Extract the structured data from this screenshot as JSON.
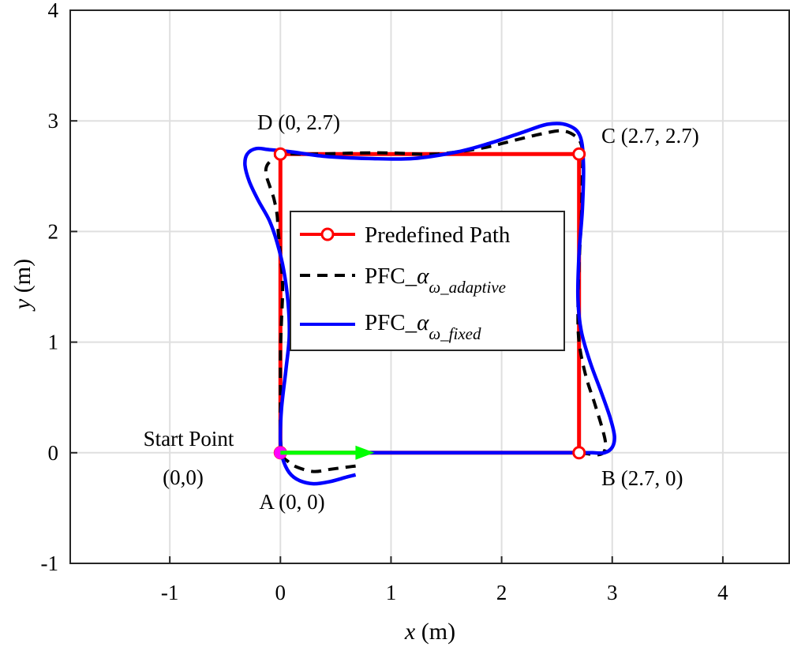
{
  "chart_data": {
    "type": "line",
    "xlabel_var": "x",
    "xlabel_unit": " (m)",
    "ylabel_var": "y",
    "ylabel_unit": " (m)",
    "xlim": [
      -1.9,
      4.6
    ],
    "ylim": [
      -1,
      4
    ],
    "xticks": [
      -1,
      0,
      1,
      2,
      3,
      4
    ],
    "yticks": [
      -1,
      0,
      1,
      2,
      3,
      4
    ],
    "grid": true,
    "legend_position": "center",
    "colors": {
      "predefined": "#ff0000",
      "adaptive": "#000000",
      "fixed": "#0000ff",
      "start_marker": "#ff00ff",
      "heading_arrow": "#00ff00"
    },
    "legend": [
      {
        "main": "Predefined Path",
        "sub": ""
      },
      {
        "main": "PFC_",
        "greek": "α",
        "sub": "ω_adaptive"
      },
      {
        "main": "PFC_",
        "greek": "α",
        "sub": "ω_fixed"
      }
    ],
    "series": [
      {
        "id": "predefined",
        "x": [
          0,
          2.7,
          2.7,
          0,
          0
        ],
        "y": [
          0,
          0,
          2.7,
          2.7,
          0
        ]
      },
      {
        "id": "adaptive",
        "x": [
          0.68,
          0.6,
          0.45,
          0.3,
          0.15,
          0.07,
          0.02,
          0.0,
          0.0,
          0.0,
          0.01,
          0.02,
          0.0,
          -0.02,
          -0.03,
          -0.06,
          -0.1,
          -0.13,
          -0.12,
          -0.05,
          0.0,
          0.3,
          0.7,
          1.0,
          1.4,
          1.8,
          2.1,
          2.35,
          2.55,
          2.68,
          2.73,
          2.73,
          2.72,
          2.7,
          2.69,
          2.7,
          2.76,
          2.84,
          2.91,
          2.94,
          2.92,
          2.86,
          2.78,
          2.7,
          2.5,
          2.1,
          1.6,
          1.1,
          0.7
        ],
        "y": [
          -0.12,
          -0.13,
          -0.15,
          -0.17,
          -0.13,
          -0.08,
          -0.02,
          0.15,
          0.5,
          0.9,
          1.2,
          1.5,
          1.8,
          2.0,
          2.15,
          2.3,
          2.42,
          2.52,
          2.6,
          2.67,
          2.7,
          2.7,
          2.71,
          2.71,
          2.7,
          2.75,
          2.82,
          2.88,
          2.91,
          2.85,
          2.74,
          2.5,
          2.1,
          1.7,
          1.3,
          1.0,
          0.7,
          0.45,
          0.22,
          0.08,
          0.0,
          -0.02,
          -0.01,
          0.0,
          0.0,
          0.0,
          0.0,
          0.0,
          0.0
        ]
      },
      {
        "id": "fixed",
        "x": [
          0.68,
          0.6,
          0.45,
          0.3,
          0.17,
          0.08,
          0.02,
          0.0,
          0.01,
          0.05,
          0.08,
          0.07,
          0.03,
          -0.03,
          -0.1,
          -0.2,
          -0.28,
          -0.32,
          -0.3,
          -0.22,
          -0.1,
          0.1,
          0.4,
          0.8,
          1.2,
          1.6,
          1.9,
          2.2,
          2.42,
          2.6,
          2.71,
          2.74,
          2.73,
          2.7,
          2.69,
          2.72,
          2.8,
          2.9,
          2.98,
          3.02,
          3.0,
          2.93,
          2.82,
          2.7,
          2.4,
          2.0,
          1.5,
          1.0,
          0.6
        ],
        "y": [
          -0.2,
          -0.22,
          -0.26,
          -0.28,
          -0.25,
          -0.18,
          -0.05,
          0.1,
          0.4,
          0.75,
          1.05,
          1.35,
          1.65,
          1.9,
          2.1,
          2.28,
          2.45,
          2.6,
          2.7,
          2.75,
          2.74,
          2.72,
          2.68,
          2.66,
          2.66,
          2.72,
          2.8,
          2.9,
          2.97,
          2.96,
          2.86,
          2.6,
          2.2,
          1.8,
          1.4,
          1.1,
          0.82,
          0.55,
          0.32,
          0.15,
          0.05,
          0.0,
          0.0,
          0.0,
          0.0,
          0.0,
          0.0,
          0.0,
          0.0
        ]
      }
    ],
    "corners": [
      {
        "id": "A",
        "label": "A (0, 0)",
        "x": 0,
        "y": 0
      },
      {
        "id": "B",
        "label": "B (2.7, 0)",
        "x": 2.7,
        "y": 0
      },
      {
        "id": "C",
        "label": "C (2.7, 2.7)",
        "x": 2.7,
        "y": 2.7
      },
      {
        "id": "D",
        "label": "D (0, 2.7)",
        "x": 0,
        "y": 2.7
      }
    ],
    "start_point": {
      "line1": "Start Point",
      "line2": "(0,0)",
      "x": 0,
      "y": 0
    },
    "heading_arrow": {
      "x0": 0,
      "y0": 0,
      "x1": 0.85,
      "y1": 0
    }
  }
}
